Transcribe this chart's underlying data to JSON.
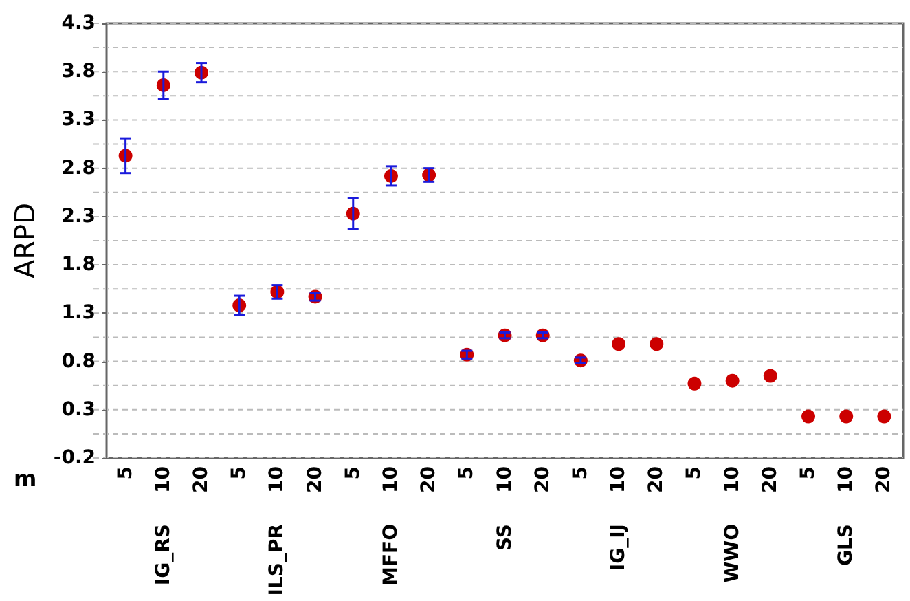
{
  "chart_data": {
    "type": "scatter",
    "ylabel": "ARPD",
    "xlabel": "m",
    "categories": [
      "5",
      "10",
      "20",
      "5",
      "10",
      "20",
      "5",
      "10",
      "20",
      "5",
      "10",
      "20",
      "5",
      "10",
      "20",
      "5",
      "10",
      "20",
      "5",
      "10",
      "20"
    ],
    "annotations": [
      "IG_RS",
      "ILS_PR",
      "MFFO",
      "SS",
      "IG_IJ",
      "WWO",
      "GLS"
    ],
    "series": [
      {
        "color": "#cc0000",
        "values": [
          2.93,
          3.66,
          3.79,
          1.38,
          1.52,
          1.47,
          2.33,
          2.72,
          2.73,
          0.87,
          1.07,
          1.07,
          0.81,
          0.98,
          0.98,
          0.57,
          0.6,
          0.65,
          0.23,
          0.23,
          0.23
        ],
        "errors": [
          0.18,
          0.14,
          0.1,
          0.1,
          0.07,
          0.04,
          0.16,
          0.1,
          0.07,
          0.04,
          0.03,
          0.03,
          0.03,
          null,
          null,
          null,
          null,
          null,
          null,
          null,
          null
        ]
      }
    ],
    "marker": "circle",
    "ylim": [
      -0.2,
      4.3
    ],
    "yticks": [
      -0.2,
      {
        "value": 0.05,
        "label": null
      },
      0.3,
      {
        "value": 0.55,
        "label": null
      },
      0.8,
      {
        "value": 1.05,
        "label": null
      },
      1.3,
      {
        "value": 1.55,
        "label": null
      },
      1.8,
      {
        "value": 2.05,
        "label": null
      },
      2.3,
      {
        "value": 2.55,
        "label": null
      },
      2.8,
      {
        "value": 3.05,
        "label": null
      },
      3.3,
      {
        "value": 3.55,
        "label": null
      },
      3.8,
      {
        "value": 4.05,
        "label": null
      },
      4.3
    ],
    "grid": "y",
    "legend": false
  }
}
